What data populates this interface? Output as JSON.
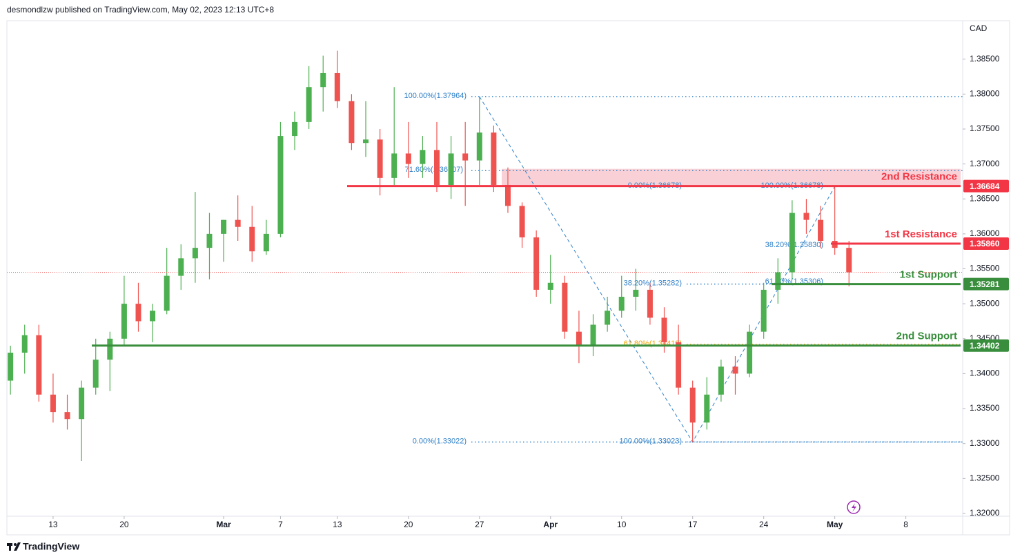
{
  "chart_data": {
    "type": "candlestick",
    "header": "desmondlzw published on TradingView.com, May 02, 2023 12:13 UTC+8",
    "y_axis_label": "CAD",
    "brand": "TradingView",
    "x": [
      -3,
      -2,
      -1,
      0,
      1,
      2,
      3,
      4,
      5,
      6,
      7,
      8,
      9,
      10,
      11,
      12,
      13,
      14,
      15,
      16,
      17,
      18,
      19,
      20,
      21,
      22,
      23,
      24,
      25,
      26,
      27,
      28,
      29,
      30,
      31,
      32,
      33,
      34,
      35,
      36,
      37,
      38,
      39,
      40,
      41,
      42,
      43,
      44,
      45,
      46,
      47,
      48,
      49,
      50,
      51,
      52,
      53,
      54,
      55,
      56
    ],
    "open": [
      1.339,
      1.343,
      1.3455,
      1.337,
      1.3345,
      1.3335,
      1.338,
      1.342,
      1.345,
      1.35,
      1.3475,
      1.349,
      1.354,
      1.3565,
      1.358,
      1.36,
      1.362,
      1.361,
      1.3575,
      1.36,
      1.374,
      1.376,
      1.381,
      1.383,
      1.379,
      1.373,
      1.3735,
      1.368,
      1.3715,
      1.37,
      1.372,
      1.367,
      1.3715,
      1.3705,
      1.3745,
      1.367,
      1.364,
      1.3595,
      1.352,
      1.353,
      1.346,
      1.344,
      1.347,
      1.349,
      1.351,
      1.352,
      1.348,
      1.3445,
      1.338,
      1.333,
      1.337,
      1.341,
      1.34,
      1.346,
      1.352,
      1.3545,
      1.363,
      1.362,
      1.359,
      1.358
    ],
    "high": [
      1.344,
      1.347,
      1.347,
      1.34,
      1.337,
      1.339,
      1.345,
      1.346,
      1.354,
      1.353,
      1.35,
      1.358,
      1.3585,
      1.366,
      1.363,
      1.362,
      1.3655,
      1.364,
      1.362,
      1.376,
      1.3775,
      1.384,
      1.3855,
      1.3862,
      1.38,
      1.379,
      1.375,
      1.381,
      1.376,
      1.374,
      1.376,
      1.374,
      1.376,
      1.3796,
      1.3755,
      1.3695,
      1.3645,
      1.3605,
      1.357,
      1.354,
      1.349,
      1.3485,
      1.351,
      1.354,
      1.355,
      1.353,
      1.3495,
      1.347,
      1.339,
      1.3395,
      1.342,
      1.3425,
      1.347,
      1.353,
      1.3565,
      1.3648,
      1.365,
      1.364,
      1.3668,
      1.359
    ],
    "low": [
      1.337,
      1.34,
      1.336,
      1.333,
      1.332,
      1.3275,
      1.337,
      1.3375,
      1.344,
      1.346,
      1.3445,
      1.3485,
      1.352,
      1.353,
      1.3535,
      1.356,
      1.359,
      1.356,
      1.357,
      1.3595,
      1.372,
      1.375,
      1.3775,
      1.378,
      1.372,
      1.371,
      1.3655,
      1.367,
      1.368,
      1.368,
      1.366,
      1.365,
      1.364,
      1.367,
      1.366,
      1.363,
      1.358,
      1.351,
      1.35,
      1.345,
      1.3415,
      1.3425,
      1.346,
      1.348,
      1.349,
      1.347,
      1.343,
      1.337,
      1.3302,
      1.332,
      1.336,
      1.337,
      1.3395,
      1.345,
      1.35,
      1.3535,
      1.36,
      1.358,
      1.357,
      1.3525
    ],
    "close": [
      1.343,
      1.3455,
      1.337,
      1.3345,
      1.3335,
      1.338,
      1.342,
      1.345,
      1.35,
      1.3475,
      1.349,
      1.354,
      1.3565,
      1.358,
      1.36,
      1.362,
      1.361,
      1.3575,
      1.36,
      1.374,
      1.376,
      1.381,
      1.383,
      1.379,
      1.373,
      1.3735,
      1.368,
      1.3715,
      1.37,
      1.372,
      1.367,
      1.3715,
      1.3705,
      1.3745,
      1.367,
      1.364,
      1.3595,
      1.352,
      1.353,
      1.346,
      1.344,
      1.347,
      1.349,
      1.351,
      1.352,
      1.348,
      1.3445,
      1.338,
      1.333,
      1.337,
      1.341,
      1.34,
      1.346,
      1.352,
      1.3545,
      1.363,
      1.362,
      1.359,
      1.358,
      1.3545
    ],
    "up_color": "#4caf50",
    "down_color": "#ef5350",
    "xlim": [
      -3.25,
      64
    ],
    "xticks": [
      {
        "value": 0,
        "label": "13"
      },
      {
        "value": 5,
        "label": "20"
      },
      {
        "value": 12,
        "label": "Mar"
      },
      {
        "value": 16,
        "label": "7"
      },
      {
        "value": 20,
        "label": "13"
      },
      {
        "value": 25,
        "label": "20"
      },
      {
        "value": 30,
        "label": "27"
      },
      {
        "value": 35,
        "label": "Apr"
      },
      {
        "value": 40,
        "label": "10"
      },
      {
        "value": 45,
        "label": "17"
      },
      {
        "value": 50,
        "label": "24"
      },
      {
        "value": 55,
        "label": "May"
      },
      {
        "value": 60,
        "label": "8"
      }
    ],
    "ylim": [
      1.3196,
      1.3905
    ],
    "yticks": [
      {
        "value": 1.385,
        "label": "1.38500"
      },
      {
        "value": 1.38,
        "label": "1.38000"
      },
      {
        "value": 1.375,
        "label": "1.37500"
      },
      {
        "value": 1.37,
        "label": "1.37000"
      },
      {
        "value": 1.365,
        "label": "1.36500"
      },
      {
        "value": 1.36,
        "label": "1.36000"
      },
      {
        "value": 1.355,
        "label": "1.35500"
      },
      {
        "value": 1.35,
        "label": "1.35000"
      },
      {
        "value": 1.345,
        "label": "1.34500"
      },
      {
        "value": 1.34,
        "label": "1.34000"
      },
      {
        "value": 1.335,
        "label": "1.33500"
      },
      {
        "value": 1.33,
        "label": "1.33000"
      },
      {
        "value": 1.325,
        "label": "1.32500"
      },
      {
        "value": 1.32,
        "label": "1.32000"
      }
    ],
    "zone_top": 1.3693,
    "zone_color": "#f8d0d6",
    "levels": [
      {
        "name": "2nd Resistance",
        "value": 1.36684,
        "label": "1.36684",
        "color": "#f23645"
      },
      {
        "name": "1st Resistance",
        "value": 1.3586,
        "label": "1.35860",
        "color": "#f23645"
      },
      {
        "name": "1st Support",
        "value": 1.35281,
        "label": "1.35281",
        "color": "#388e3c"
      },
      {
        "name": "2nd Support",
        "value": 1.34402,
        "label": "1.34402",
        "color": "#388e3c"
      }
    ],
    "fibs": [
      {
        "label": "100.00%(1.37964)",
        "value": 1.37964,
        "color": "#2f80c8"
      },
      {
        "label": "71.60%(1.36907)",
        "value": 1.36907,
        "color": "#2f80c8"
      },
      {
        "label": "0.00%(1.33022)",
        "value": 1.33022,
        "color": "#2f80c8"
      },
      {
        "label": "0.00%(1.36678)",
        "value": 1.36678,
        "color": "#2f80c8"
      },
      {
        "label": "100.00%(1.36678)",
        "value": 1.36678,
        "color": "#2f80c8"
      },
      {
        "label": "38.20%(1.35830)",
        "value": 1.3583,
        "color": "#2f80c8"
      },
      {
        "label": "38.20%(1.35282)",
        "value": 1.35282,
        "color": "#2f80c8"
      },
      {
        "label": "61.80%(1.35306)",
        "value": 1.35306,
        "color": "#2f80c8"
      },
      {
        "label": "61.80%(1.34419)",
        "value": 1.34419,
        "color": "#f0a500"
      },
      {
        "label": "100.00%(1.33023)",
        "value": 1.33023,
        "color": "#2f80c8"
      }
    ]
  }
}
